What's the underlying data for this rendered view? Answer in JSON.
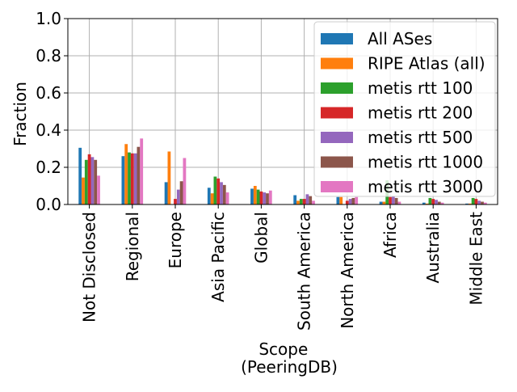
{
  "chart_data": {
    "type": "bar",
    "xlabel_lines": [
      "Scope",
      "(PeeringDB)"
    ],
    "ylabel": "Fraction",
    "ylim": [
      0,
      1.0
    ],
    "yticks": [
      "0.0",
      "0.2",
      "0.4",
      "0.6",
      "0.8",
      "1.0"
    ],
    "grid": true,
    "legend_position": "top-right",
    "categories": [
      "Not Disclosed",
      "Regional",
      "Europe",
      "Asia Pacific",
      "Global",
      "South America",
      "North America",
      "Africa",
      "Australia",
      "Middle East"
    ],
    "series": [
      {
        "name": "All ASes",
        "color": "#1f77b4",
        "values": [
          0.305,
          0.26,
          0.12,
          0.09,
          0.085,
          0.05,
          0.04,
          0.015,
          0.01,
          0.005
        ]
      },
      {
        "name": "RIPE Atlas (all)",
        "color": "#ff7f0e",
        "values": [
          0.145,
          0.325,
          0.285,
          0.06,
          0.1,
          0.02,
          0.04,
          0.015,
          0.005,
          0.005
        ]
      },
      {
        "name": "metis rtt 100",
        "color": "#2ca02c",
        "values": [
          0.24,
          0.28,
          0.0,
          0.15,
          0.08,
          0.03,
          0.0,
          0.13,
          0.035,
          0.035
        ]
      },
      {
        "name": "metis rtt 200",
        "color": "#d62728",
        "values": [
          0.27,
          0.275,
          0.03,
          0.14,
          0.07,
          0.03,
          0.02,
          0.04,
          0.03,
          0.03
        ]
      },
      {
        "name": "metis rtt 500",
        "color": "#9467bd",
        "values": [
          0.255,
          0.275,
          0.08,
          0.12,
          0.065,
          0.055,
          0.03,
          0.045,
          0.025,
          0.02
        ]
      },
      {
        "name": "metis rtt 1000",
        "color": "#8c564b",
        "values": [
          0.24,
          0.31,
          0.125,
          0.105,
          0.06,
          0.045,
          0.035,
          0.035,
          0.015,
          0.015
        ]
      },
      {
        "name": "metis rtt 3000",
        "color": "#e377c2",
        "values": [
          0.155,
          0.355,
          0.25,
          0.065,
          0.075,
          0.02,
          0.04,
          0.015,
          0.01,
          0.01
        ]
      }
    ]
  }
}
